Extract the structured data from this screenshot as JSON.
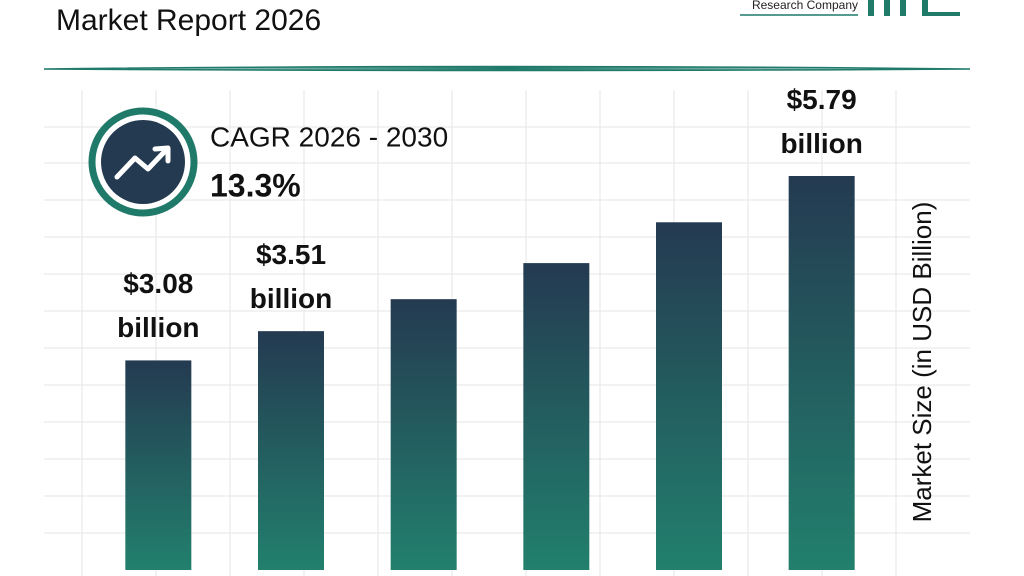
{
  "chart_data": {
    "type": "bar",
    "title": "Market Report 2026",
    "brand": "Research Company",
    "cagr_label": "CAGR 2026 - 2030",
    "cagr_value": "13.3%",
    "y_label": "Market Size (in USD Billion)",
    "categories": [
      null,
      null,
      null,
      null,
      null,
      null
    ],
    "values": [
      3.08,
      3.51,
      3.98,
      4.51,
      5.11,
      5.79
    ],
    "value_labels": [
      "$3.08 billion",
      "$3.51 billion",
      null,
      null,
      null,
      "$5.79 billion"
    ],
    "colors": [
      "#243a51",
      "#22806d"
    ]
  }
}
